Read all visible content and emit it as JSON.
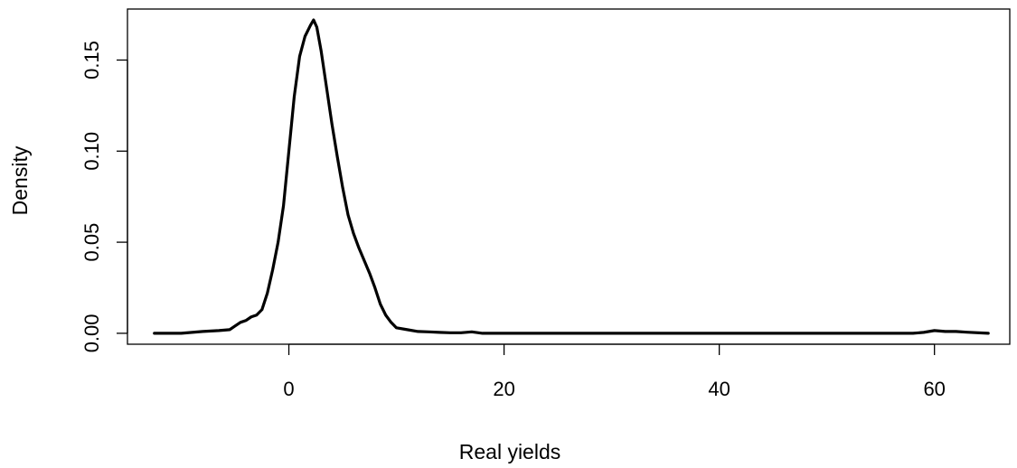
{
  "chart_data": {
    "type": "line",
    "title": "",
    "xlabel": "Real yields",
    "ylabel": "Density",
    "xlim": [
      -15,
      67
    ],
    "ylim": [
      -0.006,
      0.178
    ],
    "x_ticks": [
      0,
      20,
      40,
      60
    ],
    "x_tick_labels": [
      "0",
      "20",
      "40",
      "60"
    ],
    "y_ticks": [
      0.0,
      0.05,
      0.1,
      0.15
    ],
    "y_tick_labels": [
      "0.00",
      "0.05",
      "0.10",
      "0.15"
    ],
    "grid": false,
    "legend": "none",
    "series": [
      {
        "x": [
          -12.5,
          -10,
          -8,
          -6.5,
          -5.5,
          -5,
          -4.5,
          -4,
          -3.5,
          -3,
          -2.5,
          -2,
          -1.5,
          -1,
          -0.5,
          0,
          0.5,
          1,
          1.5,
          2,
          2.3,
          2.6,
          3,
          3.5,
          4,
          4.5,
          5,
          5.5,
          6,
          6.5,
          7,
          7.5,
          8,
          8.5,
          9,
          9.5,
          10,
          11,
          12,
          13,
          14,
          15,
          16,
          17,
          18,
          20,
          25,
          30,
          35,
          40,
          45,
          50,
          55,
          58,
          59,
          60,
          61,
          62,
          63,
          65
        ],
        "y": [
          0.0,
          0.0,
          0.001,
          0.0015,
          0.002,
          0.004,
          0.006,
          0.007,
          0.009,
          0.01,
          0.013,
          0.022,
          0.035,
          0.05,
          0.07,
          0.1,
          0.13,
          0.152,
          0.163,
          0.169,
          0.172,
          0.168,
          0.155,
          0.135,
          0.115,
          0.097,
          0.08,
          0.065,
          0.055,
          0.047,
          0.04,
          0.033,
          0.025,
          0.016,
          0.01,
          0.006,
          0.003,
          0.002,
          0.001,
          0.0008,
          0.0005,
          0.0003,
          0.0003,
          0.0008,
          0.0,
          0.0,
          0.0,
          0.0,
          0.0,
          0.0,
          0.0,
          0.0,
          0.0,
          0.0,
          0.0005,
          0.0015,
          0.001,
          0.001,
          0.0006,
          0.0
        ]
      }
    ]
  }
}
